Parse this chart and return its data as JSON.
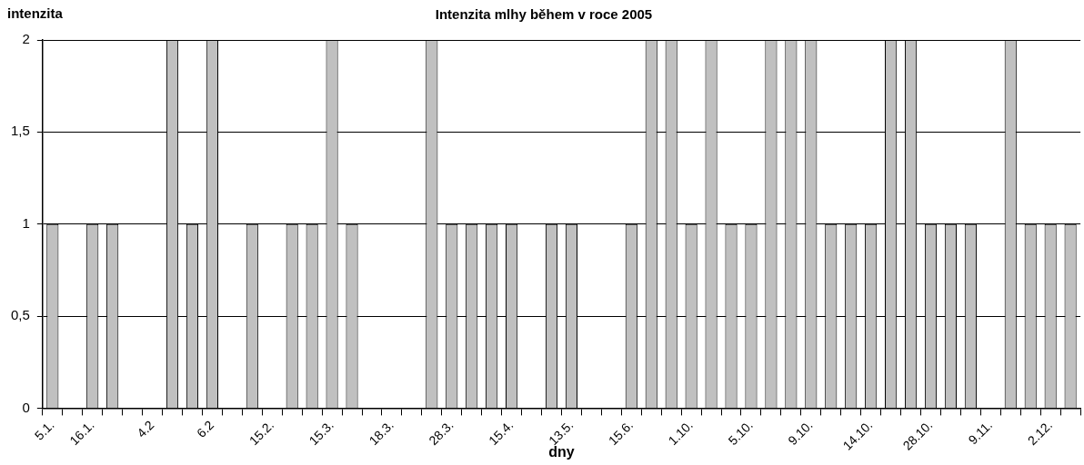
{
  "chart_data": {
    "type": "bar",
    "title": "Intenzita mlhy během v roce 2005",
    "xlabel": "dny",
    "ylabel": "intenzita",
    "categories": [
      "5.1.",
      null,
      "16.1.",
      null,
      null,
      "4.2",
      null,
      null,
      "6.2",
      null,
      null,
      "15.2.",
      null,
      null,
      "15.3.",
      null,
      null,
      "18.3.",
      null,
      null,
      "28.3.",
      null,
      null,
      "15.4.",
      null,
      null,
      "13.5.",
      null,
      null,
      "15.6.",
      null,
      null,
      "1.10.",
      null,
      null,
      "5.10.",
      null,
      null,
      "9.10.",
      null,
      null,
      "14.10.",
      null,
      null,
      "28.10.",
      null,
      null,
      "9.11.",
      null,
      null,
      "2.12.",
      null
    ],
    "values": [
      1,
      null,
      1,
      1,
      null,
      null,
      2,
      1,
      2,
      null,
      1,
      null,
      1,
      1,
      2,
      1,
      null,
      null,
      null,
      2,
      1,
      1,
      1,
      1,
      null,
      1,
      1,
      null,
      null,
      1,
      2,
      2,
      1,
      2,
      1,
      1,
      2,
      2,
      2,
      1,
      1,
      1,
      2,
      2,
      1,
      1,
      1,
      null,
      2,
      1,
      1,
      1
    ],
    "color": "#c0c0c0",
    "ylim": [
      0,
      2
    ],
    "yticks": [
      0,
      {
        "value": 0.5,
        "label": "0,5"
      },
      1,
      {
        "value": 1.5,
        "label": "1,5"
      },
      2
    ],
    "grid": "y",
    "legend": false
  }
}
